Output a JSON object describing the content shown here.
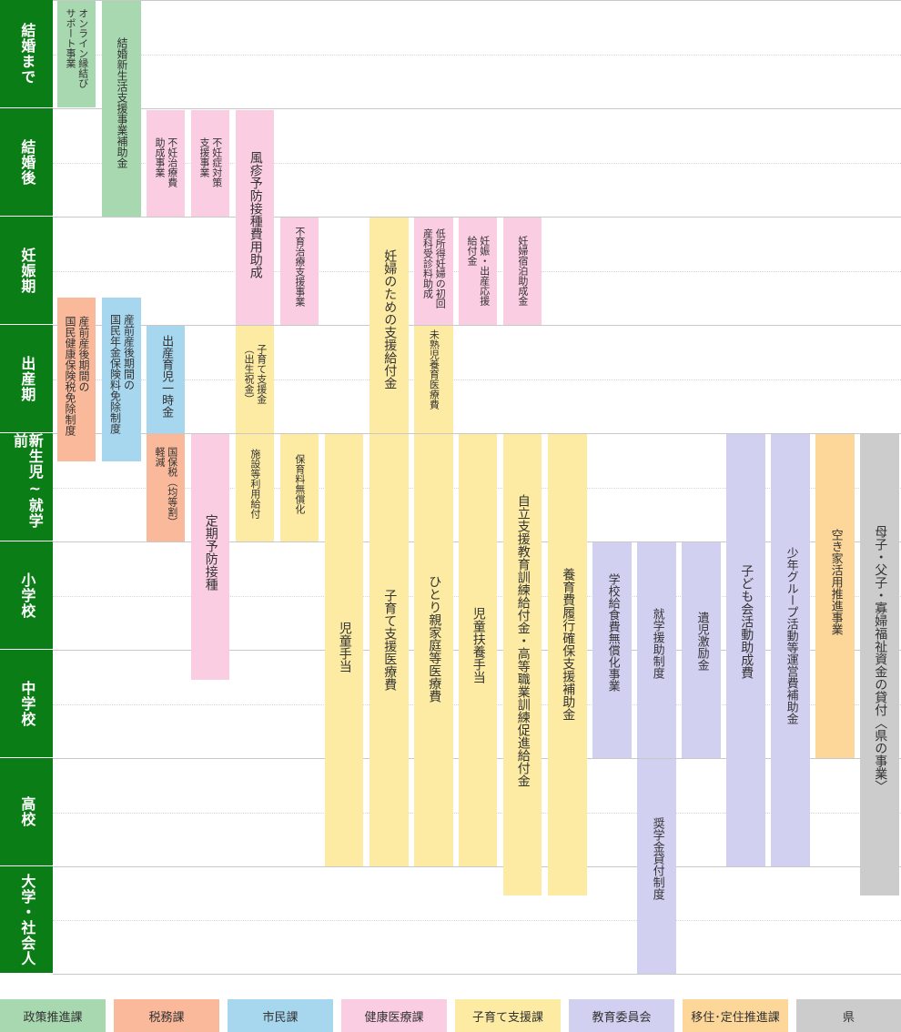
{
  "stages": [
    "結婚まで",
    "結婚後",
    "妊娠期",
    "出産期",
    "新生児~就学前",
    "小学校",
    "中学校",
    "高校",
    "大学・社会人"
  ],
  "departments": [
    {
      "key": "seisaku",
      "label": "政策推進課",
      "color": "#a8d8b0"
    },
    {
      "key": "zeimu",
      "label": "税務課",
      "color": "#f9b99a"
    },
    {
      "key": "shimin",
      "label": "市民課",
      "color": "#a7d7ef"
    },
    {
      "key": "kenko",
      "label": "健康医療課",
      "color": "#fbcde3"
    },
    {
      "key": "kosodate",
      "label": "子育て支援課",
      "color": "#fdeba3"
    },
    {
      "key": "kyoiku",
      "label": "教育委員会",
      "color": "#d2d0f0"
    },
    {
      "key": "iju",
      "label": "移住･定住推進課",
      "color": "#fdd79a"
    },
    {
      "key": "ken",
      "label": "県",
      "color": "#cccccc"
    }
  ],
  "programs": [
    {
      "label": "オンライン縁結び\nサポート事業",
      "dept": "seisaku"
    },
    {
      "label": "結婚新生活支援事業補助金",
      "dept": "seisaku"
    },
    {
      "label": "不妊治療費\n助成事業",
      "dept": "kenko"
    },
    {
      "label": "不妊症対策\n支援事業",
      "dept": "kenko"
    },
    {
      "label": "風疹予防接種費用助成",
      "dept": "kenko"
    },
    {
      "label": "不育治療支援事業",
      "dept": "kenko"
    },
    {
      "label": "妊婦のための支援給付金",
      "dept": "kosodate"
    },
    {
      "label": "低所得妊婦の初回\n産科受診料助成",
      "dept": "kenko"
    },
    {
      "label": "妊娠・出産応援\n給付金",
      "dept": "kenko"
    },
    {
      "label": "妊婦宿泊助成金",
      "dept": "kenko"
    },
    {
      "label": "産前産後期間の\n国民健康保険税免除制度",
      "dept": "zeimu"
    },
    {
      "label": "産前産後期間の\n国民年金保険料免除制度",
      "dept": "shimin"
    },
    {
      "label": "出産育児一時金",
      "dept": "shimin"
    },
    {
      "label": "子育て支援金\n（出生祝金）",
      "dept": "kosodate"
    },
    {
      "label": "未熟児養育医療費",
      "dept": "kosodate"
    },
    {
      "label": "国保税（均等割）\n軽減",
      "dept": "zeimu"
    },
    {
      "label": "定期予防接種",
      "dept": "kenko"
    },
    {
      "label": "施設等利用給付",
      "dept": "kosodate"
    },
    {
      "label": "保育料無償化",
      "dept": "kosodate"
    },
    {
      "label": "児童手当",
      "dept": "kosodate"
    },
    {
      "label": "子育て支援医療費",
      "dept": "kosodate"
    },
    {
      "label": "ひとり親家庭等医療費",
      "dept": "kosodate"
    },
    {
      "label": "児童扶養手当",
      "dept": "kosodate"
    },
    {
      "label": "自立支援教育訓練給付金・高等職業訓練促進給付金",
      "dept": "kosodate"
    },
    {
      "label": "養育費履行確保支援補助金",
      "dept": "kosodate"
    },
    {
      "label": "学校給食費無償化事業",
      "dept": "kyoiku"
    },
    {
      "label": "就学援助制度",
      "dept": "kyoiku"
    },
    {
      "label": "奨学金貸付制度",
      "dept": "kyoiku"
    },
    {
      "label": "遺児激励金",
      "dept": "kyoiku"
    },
    {
      "label": "子ども会活動助成費",
      "dept": "kyoiku"
    },
    {
      "label": "少年グループ活動等運営費補助金",
      "dept": "kyoiku"
    },
    {
      "label": "空き家活用推進事業",
      "dept": "iju"
    },
    {
      "label": "母子・父子・寡婦福祉資金の貸付〈県の事業〉",
      "dept": "ken"
    }
  ]
}
